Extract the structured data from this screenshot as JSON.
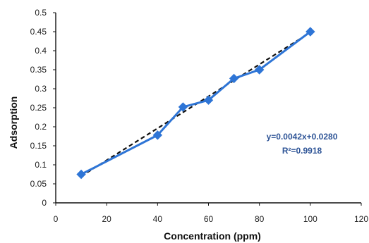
{
  "chart_data": {
    "type": "scatter",
    "xlabel": "Concentration (ppm)",
    "ylabel": "Adsorption",
    "xlim": [
      0,
      120
    ],
    "ylim": [
      0,
      0.5
    ],
    "xticks": [
      "0",
      "20",
      "40",
      "60",
      "80",
      "100",
      "120"
    ],
    "yticks": [
      "0",
      "0.05",
      "0.1",
      "0.15",
      "0.2",
      "0.25",
      "0.3",
      "0.35",
      "0.4",
      "0.45",
      "0.5"
    ],
    "series": [
      {
        "x": [
          10,
          40,
          50,
          60,
          70,
          80,
          100
        ],
        "y": [
          0.075,
          0.178,
          0.252,
          0.27,
          0.327,
          0.35,
          0.45
        ],
        "color": "#2e75d6",
        "marker": "diamond"
      }
    ],
    "trendline": {
      "x": [
        10,
        100
      ],
      "y": [
        0.07,
        0.448
      ],
      "style": "dashed",
      "color": "#111111"
    },
    "annotations": {
      "equation": "y=0.0042x+0.0280",
      "r2": "R²=0.9918"
    },
    "grid": false,
    "colors": {
      "axis": "#111111",
      "series": "#2e75d6",
      "trendline": "#111111",
      "annotation": "#2f5597"
    }
  }
}
